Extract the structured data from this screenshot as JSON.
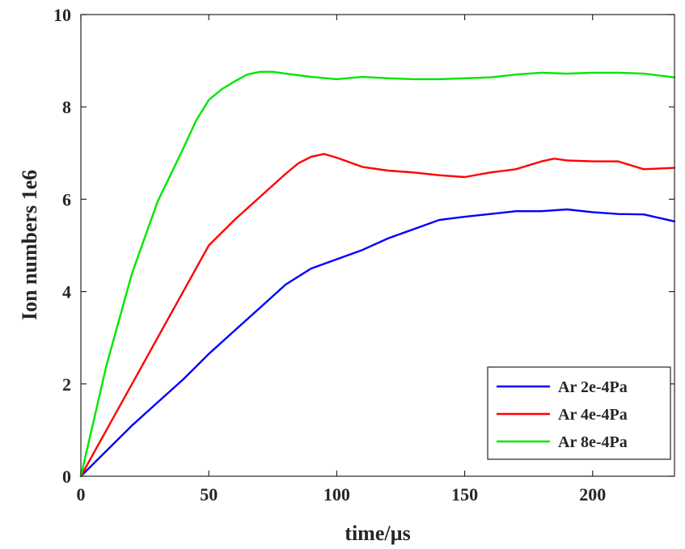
{
  "chart_data": {
    "type": "line",
    "xlabel": "time/µs",
    "ylabel": "Ion numbers 1e6",
    "xlim": [
      0,
      232
    ],
    "ylim": [
      0,
      10
    ],
    "xticks": [
      0,
      50,
      100,
      150,
      200
    ],
    "yticks": [
      0,
      2,
      4,
      6,
      8,
      10
    ],
    "legend_position": "bottom-right",
    "grid": false,
    "series": [
      {
        "name": "Ar 2e-4Pa",
        "color": "#0000ff",
        "x": [
          0,
          10,
          20,
          30,
          40,
          50,
          60,
          70,
          80,
          90,
          100,
          110,
          120,
          130,
          140,
          150,
          160,
          170,
          180,
          190,
          200,
          210,
          220,
          232
        ],
        "y": [
          0,
          0.55,
          1.1,
          1.6,
          2.1,
          2.65,
          3.15,
          3.65,
          4.15,
          4.5,
          4.7,
          4.9,
          5.15,
          5.35,
          5.55,
          5.62,
          5.68,
          5.74,
          5.74,
          5.78,
          5.72,
          5.68,
          5.67,
          5.52
        ]
      },
      {
        "name": "Ar 4e-4Pa",
        "color": "#ff0000",
        "x": [
          0,
          10,
          20,
          30,
          40,
          50,
          60,
          70,
          80,
          85,
          90,
          95,
          100,
          110,
          120,
          130,
          140,
          150,
          160,
          170,
          180,
          185,
          190,
          200,
          210,
          220,
          232
        ],
        "y": [
          0,
          1.0,
          2.0,
          3.0,
          4.0,
          5.0,
          5.55,
          6.05,
          6.55,
          6.78,
          6.92,
          6.98,
          6.9,
          6.7,
          6.62,
          6.58,
          6.52,
          6.48,
          6.58,
          6.65,
          6.82,
          6.88,
          6.84,
          6.82,
          6.82,
          6.65,
          6.68
        ]
      },
      {
        "name": "Ar 8e-4Pa",
        "color": "#00e600",
        "x": [
          0,
          10,
          20,
          30,
          40,
          45,
          50,
          55,
          60,
          65,
          70,
          75,
          80,
          90,
          100,
          110,
          120,
          130,
          140,
          150,
          160,
          170,
          180,
          190,
          200,
          210,
          220,
          232
        ],
        "y": [
          0,
          2.4,
          4.4,
          5.95,
          7.1,
          7.7,
          8.15,
          8.38,
          8.55,
          8.7,
          8.76,
          8.76,
          8.72,
          8.65,
          8.6,
          8.65,
          8.62,
          8.6,
          8.6,
          8.62,
          8.64,
          8.7,
          8.74,
          8.72,
          8.74,
          8.74,
          8.72,
          8.64
        ]
      }
    ]
  }
}
